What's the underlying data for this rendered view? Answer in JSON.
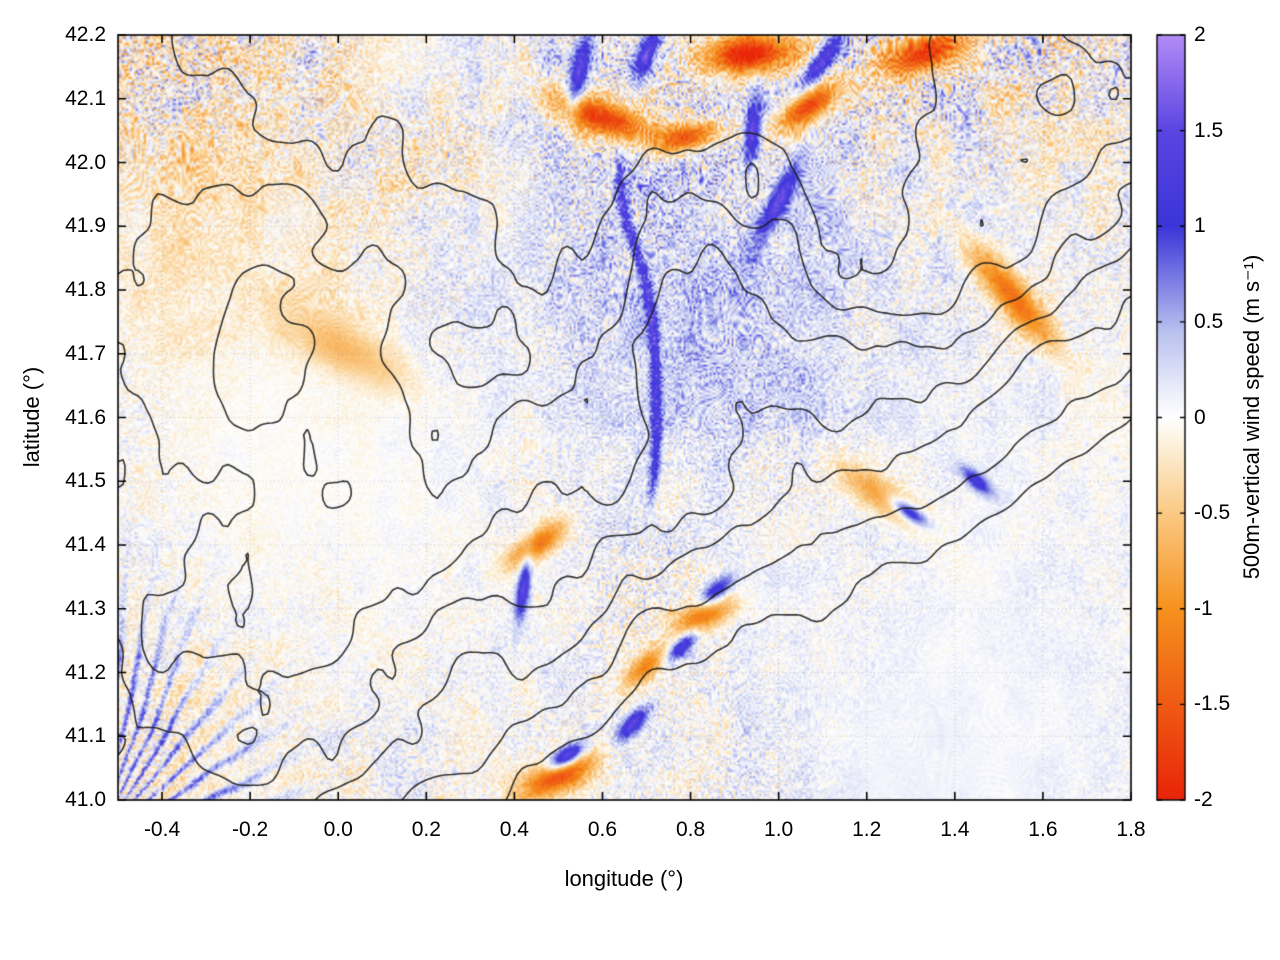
{
  "figure": {
    "background": "#ffffff",
    "style": "gnuplot pm3d map with colorbar"
  },
  "axes": {
    "x": {
      "label": "longitude (°)",
      "min": -0.5,
      "max": 1.8,
      "ticks": [
        {
          "v": -0.4,
          "label": "-0.4"
        },
        {
          "v": -0.2,
          "label": "-0.2"
        },
        {
          "v": 0.0,
          "label": "0.0"
        },
        {
          "v": 0.2,
          "label": "0.2"
        },
        {
          "v": 0.4,
          "label": "0.4"
        },
        {
          "v": 0.6,
          "label": "0.6"
        },
        {
          "v": 0.8,
          "label": "0.8"
        },
        {
          "v": 1.0,
          "label": "1.0"
        },
        {
          "v": 1.2,
          "label": "1.2"
        },
        {
          "v": 1.4,
          "label": "1.4"
        },
        {
          "v": 1.6,
          "label": "1.6"
        },
        {
          "v": 1.8,
          "label": "1.8"
        }
      ]
    },
    "y": {
      "label": "latitude (°)",
      "min": 41.0,
      "max": 42.2,
      "ticks": [
        {
          "v": 41.0,
          "label": "41.0"
        },
        {
          "v": 41.1,
          "label": "41.1"
        },
        {
          "v": 41.2,
          "label": "41.2"
        },
        {
          "v": 41.3,
          "label": "41.3"
        },
        {
          "v": 41.4,
          "label": "41.4"
        },
        {
          "v": 41.5,
          "label": "41.5"
        },
        {
          "v": 41.6,
          "label": "41.6"
        },
        {
          "v": 41.7,
          "label": "41.7"
        },
        {
          "v": 41.8,
          "label": "41.8"
        },
        {
          "v": 41.9,
          "label": "41.9"
        },
        {
          "v": 42.0,
          "label": "42.0"
        },
        {
          "v": 42.1,
          "label": "42.1"
        },
        {
          "v": 42.2,
          "label": "42.2"
        }
      ]
    }
  },
  "colorbar": {
    "label": "500m-vertical wind speed (m s⁻¹)",
    "min": -2,
    "max": 2,
    "ticks": [
      {
        "v": -2,
        "label": "-2"
      },
      {
        "v": -1.5,
        "label": "-1.5"
      },
      {
        "v": -1,
        "label": "-1"
      },
      {
        "v": -0.5,
        "label": "-0.5"
      },
      {
        "v": 0,
        "label": "0"
      },
      {
        "v": 0.5,
        "label": "0.5"
      },
      {
        "v": 1,
        "label": "1"
      },
      {
        "v": 1.5,
        "label": "1.5"
      },
      {
        "v": 2,
        "label": "2"
      }
    ],
    "colormap": [
      {
        "v": -2.0,
        "c": "#e92409"
      },
      {
        "v": -1.0,
        "c": "#f6921e"
      },
      {
        "v": -0.45,
        "c": "#fbcf8f"
      },
      {
        "v": -0.12,
        "c": "#fdf3e0"
      },
      {
        "v": 0.0,
        "c": "#ffffff"
      },
      {
        "v": 0.12,
        "c": "#eef0fb"
      },
      {
        "v": 0.45,
        "c": "#b9c1ef"
      },
      {
        "v": 1.0,
        "c": "#3b35d8"
      },
      {
        "v": 1.5,
        "c": "#5b45e2"
      },
      {
        "v": 2.0,
        "c": "#b38cf6"
      }
    ]
  },
  "chart_data": {
    "type": "heatmap",
    "title": "",
    "xlabel": "longitude (°)",
    "ylabel": "latitude (°)",
    "x_range": [
      -0.5,
      1.8
    ],
    "y_range": [
      41.0,
      42.2
    ],
    "x_tick_values": [
      -0.4,
      -0.2,
      0.0,
      0.2,
      0.4,
      0.6,
      0.8,
      1.0,
      1.2,
      1.4,
      1.6,
      1.8
    ],
    "y_tick_values": [
      41.0,
      41.1,
      41.2,
      41.3,
      41.4,
      41.5,
      41.6,
      41.7,
      41.8,
      41.9,
      42.0,
      42.1,
      42.2
    ],
    "value_label": "500m-vertical wind speed (m s⁻¹)",
    "value_range": [
      -2,
      2
    ],
    "colorbar_tick_values": [
      -2,
      -1.5,
      -1,
      -0.5,
      0,
      0.5,
      1,
      1.5,
      2
    ],
    "grid": true,
    "legend_position": "none",
    "overlays": [
      "unlabeled black terrain-elevation contour lines",
      "vertical colorbar at right"
    ],
    "contour_color": "#1a1a1a",
    "n_contour_levels": 7,
    "description": "Model snapshot of 500 m vertical wind speed over a ~2.3°x1.2° mountainous domain. Fine alternating blue (updraft) and orange (downdraft) wave streaks cover the map; strongest features listed below. Quiet near-white zones west-centre and lower-right; radiating blue filaments from the bottom-left corner; a long sinuous blue filament near lon 0.68 between lat 41.45 and 42.0; intense red/purple wave cores along the northern band (lat>42.0) and in the south-central sector (lon 0.4-0.9, lat 41.0-41.45).",
    "texture": {
      "wavelengths_deg": [
        0.042,
        0.022
      ],
      "typical_amplitude": 0.5
    },
    "radial_fan": {
      "center_lon": -0.55,
      "center_lat": 40.92,
      "strength": 1.25
    },
    "vertical_filament": {
      "lon": 0.68,
      "lat_min": 41.45,
      "lat_max": 42.02,
      "strength": 1.15
    },
    "features": [
      {
        "lon": 0.6,
        "lat": 42.07,
        "w": -1.9,
        "sa": 0.075,
        "sb": 0.02,
        "ang": -12,
        "blend": "mix"
      },
      {
        "lon": 0.79,
        "lat": 42.04,
        "w": -1.7,
        "sa": 0.05,
        "sb": 0.016,
        "ang": 8,
        "blend": "mix"
      },
      {
        "lon": 0.93,
        "lat": 42.17,
        "w": -2.0,
        "sa": 0.08,
        "sb": 0.022,
        "ang": 4,
        "blend": "mix"
      },
      {
        "lon": 1.07,
        "lat": 42.09,
        "w": -1.8,
        "sa": 0.055,
        "sb": 0.018,
        "ang": 22,
        "blend": "mix"
      },
      {
        "lon": 1.33,
        "lat": 42.17,
        "w": -1.9,
        "sa": 0.065,
        "sb": 0.02,
        "ang": 12,
        "blend": "mix"
      },
      {
        "lon": 0.5,
        "lat": 41.04,
        "w": -1.9,
        "sa": 0.06,
        "sb": 0.02,
        "ang": 18,
        "blend": "mix"
      },
      {
        "lon": 0.83,
        "lat": 41.29,
        "w": -1.8,
        "sa": 0.05,
        "sb": 0.018,
        "ang": 14,
        "blend": "mix"
      },
      {
        "lon": 0.7,
        "lat": 41.21,
        "w": -1.4,
        "sa": 0.04,
        "sb": 0.015,
        "ang": 28,
        "blend": "mix"
      },
      {
        "lon": 1.53,
        "lat": 41.79,
        "w": -1.4,
        "sa": 0.09,
        "sb": 0.022,
        "ang": -38,
        "blend": "mix"
      },
      {
        "lon": 0.45,
        "lat": 41.4,
        "w": -1.5,
        "sa": 0.05,
        "sb": 0.016,
        "ang": 24,
        "blend": "mix"
      },
      {
        "lon": 0.02,
        "lat": 41.7,
        "w": -1.0,
        "sa": 0.1,
        "sb": 0.03,
        "ang": -18,
        "blend": "mix"
      },
      {
        "lon": 1.25,
        "lat": 41.47,
        "w": -1.4,
        "sa": 0.085,
        "sb": 0.02,
        "ang": -24,
        "blend": "mix"
      },
      {
        "lon": 0.42,
        "lat": 41.33,
        "w": 1.8,
        "sa": 0.035,
        "sb": 0.01,
        "ang": 78,
        "blend": "mix"
      },
      {
        "lon": 0.52,
        "lat": 41.07,
        "w": 1.9,
        "sa": 0.032,
        "sb": 0.011,
        "ang": 20,
        "blend": "mix"
      },
      {
        "lon": 0.67,
        "lat": 41.12,
        "w": 1.8,
        "sa": 0.03,
        "sb": 0.011,
        "ang": 34,
        "blend": "mix"
      },
      {
        "lon": 0.78,
        "lat": 41.24,
        "w": 1.7,
        "sa": 0.026,
        "sb": 0.01,
        "ang": 30,
        "blend": "mix"
      },
      {
        "lon": 1.3,
        "lat": 41.45,
        "w": 1.8,
        "sa": 0.035,
        "sb": 0.01,
        "ang": -24,
        "blend": "mix"
      },
      {
        "lon": 0.86,
        "lat": 41.33,
        "w": 1.5,
        "sa": 0.03,
        "sb": 0.012,
        "ang": 26,
        "blend": "mix"
      },
      {
        "lon": 0.7,
        "lat": 42.17,
        "w": 1.6,
        "sa": 0.032,
        "sb": 0.014,
        "ang": 60,
        "blend": "mix"
      },
      {
        "lon": 1.45,
        "lat": 41.5,
        "w": 1.6,
        "sa": 0.03,
        "sb": 0.01,
        "ang": -28,
        "blend": "mix"
      },
      {
        "lon": 0.55,
        "lat": 42.15,
        "w": 1.5,
        "sa": 0.045,
        "sb": 0.014,
        "ang": 72,
        "blend": "mix"
      },
      {
        "lon": 1.0,
        "lat": 41.94,
        "w": 1.4,
        "sa": 0.055,
        "sb": 0.014,
        "ang": 52,
        "blend": "mix"
      },
      {
        "lon": 0.94,
        "lat": 42.05,
        "w": 1.5,
        "sa": 0.04,
        "sb": 0.013,
        "ang": 80,
        "blend": "mix"
      },
      {
        "lon": 1.1,
        "lat": 42.16,
        "w": 1.5,
        "sa": 0.05,
        "sb": 0.013,
        "ang": 40,
        "blend": "mix"
      },
      {
        "lon": 0.85,
        "lat": 41.78,
        "w": 0.35,
        "sa": 0.35,
        "sb": 0.18,
        "ang": 0,
        "blend": "add"
      },
      {
        "lon": 1.4,
        "lat": 41.12,
        "w": 0.25,
        "sa": 0.4,
        "sb": 0.22,
        "ang": 0,
        "blend": "add"
      },
      {
        "lon": -0.3,
        "lat": 41.88,
        "w": -0.25,
        "sa": 0.25,
        "sb": 0.2,
        "ang": 0,
        "blend": "add"
      },
      {
        "lon": -0.15,
        "lat": 41.5,
        "w": 0.0,
        "sa": 0.33,
        "sb": 0.22,
        "ang": 0,
        "blend": "damp"
      },
      {
        "lon": 1.45,
        "lat": 41.15,
        "w": 0.0,
        "sa": 0.45,
        "sb": 0.25,
        "ang": 0,
        "blend": "damp"
      }
    ]
  }
}
